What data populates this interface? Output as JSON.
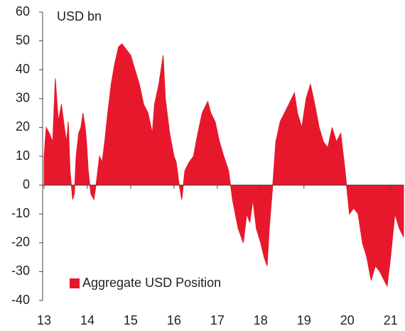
{
  "chart_data": {
    "type": "area",
    "annotation": "USD bn",
    "series": [
      {
        "name": "Aggregate USD Position",
        "color": "#e8182c",
        "x": [
          13.0,
          13.05,
          13.12,
          13.2,
          13.26,
          13.33,
          13.4,
          13.47,
          13.52,
          13.56,
          13.6,
          13.63,
          13.66,
          13.7,
          13.74,
          13.8,
          13.85,
          13.9,
          13.95,
          13.98,
          14.02,
          14.08,
          14.15,
          14.2,
          14.28,
          14.34,
          14.4,
          14.47,
          14.55,
          14.63,
          14.72,
          14.8,
          14.9,
          15.0,
          15.1,
          15.2,
          15.3,
          15.4,
          15.5,
          15.55,
          15.65,
          15.75,
          15.8,
          15.9,
          16.0,
          16.05,
          16.12,
          16.18,
          16.25,
          16.35,
          16.45,
          16.55,
          16.65,
          16.78,
          16.85,
          16.95,
          17.05,
          17.15,
          17.26,
          17.35,
          17.48,
          17.6,
          17.68,
          17.75,
          17.82,
          17.9,
          18.0,
          18.08,
          18.15,
          18.2,
          18.28,
          18.35,
          18.45,
          18.55,
          18.65,
          18.78,
          18.85,
          18.95,
          19.05,
          19.15,
          19.25,
          19.35,
          19.45,
          19.55,
          19.65,
          19.75,
          19.85,
          19.95,
          20.05,
          20.15,
          20.25,
          20.35,
          20.45,
          20.55,
          20.65,
          20.75,
          20.85,
          20.92,
          21.0,
          21.1,
          21.2,
          21.3
        ],
        "values": [
          10,
          20,
          18,
          15,
          37,
          22,
          28,
          20,
          15,
          22,
          5,
          0,
          -5,
          -3,
          10,
          18,
          20,
          25,
          20,
          15,
          5,
          -3,
          -5,
          0,
          10,
          8,
          15,
          25,
          35,
          42,
          48,
          49,
          47,
          45,
          40,
          35,
          28,
          25,
          18,
          28,
          35,
          45,
          30,
          18,
          10,
          8,
          0,
          -5,
          5,
          8,
          10,
          18,
          25,
          29,
          25,
          22,
          15,
          10,
          5,
          -5,
          -15,
          -20,
          -10,
          -13,
          -5,
          -15,
          -20,
          -25,
          -28,
          -15,
          0,
          15,
          22,
          25,
          28,
          32,
          25,
          20,
          30,
          35,
          28,
          20,
          15,
          13,
          20,
          15,
          18,
          5,
          -10,
          -8,
          -10,
          -20,
          -25,
          -33,
          -28,
          -30,
          -33,
          -35,
          -25,
          -10,
          -15,
          -18
        ]
      }
    ],
    "xlim": [
      13,
      21.3
    ],
    "xticks": [
      13,
      14,
      15,
      16,
      17,
      18,
      19,
      20,
      21
    ],
    "ylim": [
      -40,
      60
    ],
    "yticks": [
      -40,
      -30,
      -20,
      -10,
      0,
      10,
      20,
      30,
      40,
      50,
      60
    ],
    "legend": "lower left"
  }
}
